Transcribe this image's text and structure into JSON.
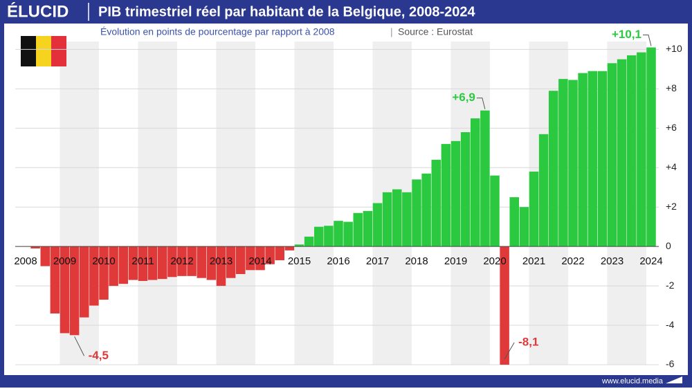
{
  "brand": {
    "logo": "ÉLUCID",
    "website": "www.elucid.media"
  },
  "chart_data": {
    "type": "bar",
    "title": "PIB trimestriel réel par habitant de la Belgique, 2008-2024",
    "subtitle": "Évolution en points de pourcentage par rapport à 2008",
    "source": "Source : Eurostat",
    "categories": [
      "2008",
      null,
      null,
      null,
      "2009",
      null,
      null,
      null,
      "2010",
      null,
      null,
      null,
      "2011",
      null,
      null,
      null,
      "2012",
      null,
      null,
      null,
      "2013",
      null,
      null,
      null,
      "2014",
      null,
      null,
      null,
      "2015",
      null,
      null,
      null,
      "2016",
      null,
      null,
      null,
      "2017",
      null,
      null,
      null,
      "2018",
      null,
      null,
      null,
      "2019",
      null,
      null,
      null,
      "2020",
      null,
      null,
      null,
      "2021",
      null,
      null,
      null,
      "2022",
      null,
      null,
      null,
      "2023",
      null,
      null,
      null,
      "2024"
    ],
    "values": [
      0,
      -0.1,
      -1.0,
      -3.4,
      -4.4,
      -4.5,
      -3.6,
      -3.0,
      -2.7,
      -2.0,
      -1.9,
      -1.7,
      -1.75,
      -1.7,
      -1.65,
      -1.55,
      -1.5,
      -1.5,
      -1.6,
      -1.7,
      -2.0,
      -1.6,
      -1.4,
      -1.2,
      -1.2,
      -0.9,
      -0.7,
      -0.2,
      0.1,
      0.5,
      1.0,
      1.05,
      1.3,
      1.25,
      1.7,
      1.8,
      2.2,
      2.75,
      2.9,
      2.75,
      3.4,
      3.7,
      4.4,
      5.2,
      5.35,
      5.8,
      6.5,
      6.9,
      3.6,
      -8.1,
      2.5,
      2.0,
      3.8,
      5.7,
      7.9,
      8.5,
      8.45,
      8.8,
      8.9,
      8.9,
      9.3,
      9.5,
      9.7,
      9.85,
      10.1
    ],
    "value_labels": [
      null,
      null,
      null,
      null,
      null,
      "-4,5",
      null,
      null,
      null,
      null,
      null,
      null,
      null,
      null,
      null,
      null,
      null,
      null,
      null,
      null,
      null,
      null,
      null,
      null,
      null,
      null,
      null,
      null,
      null,
      null,
      null,
      null,
      null,
      null,
      null,
      null,
      null,
      null,
      null,
      null,
      null,
      null,
      null,
      null,
      null,
      null,
      null,
      "+6,9",
      null,
      "-8,1",
      null,
      null,
      null,
      null,
      null,
      null,
      null,
      null,
      null,
      null,
      null,
      null,
      null,
      null,
      "+10,1"
    ],
    "positive_color": "#2bc93f",
    "negative_color": "#e0393a",
    "ylim": [
      -6,
      10.4
    ],
    "yticks": [
      -6,
      -4,
      -2,
      0,
      {
        "value": 2,
        "label": "+2"
      },
      {
        "value": 4,
        "label": "+4"
      },
      {
        "value": 6,
        "label": "+6"
      },
      {
        "value": 8,
        "label": "+8"
      },
      {
        "value": 10,
        "label": "+10"
      }
    ],
    "grid": true
  }
}
